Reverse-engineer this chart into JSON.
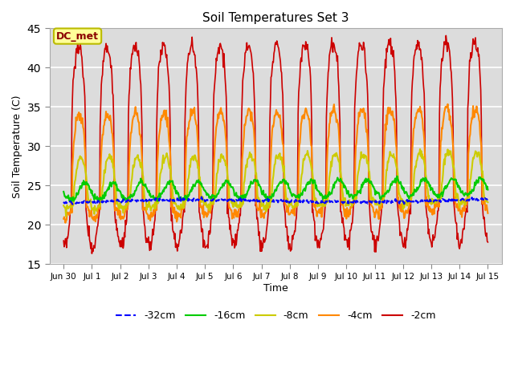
{
  "title": "Soil Temperatures Set 3",
  "xlabel": "Time",
  "ylabel": "Soil Temperature (C)",
  "ylim": [
    15,
    45
  ],
  "annotation": "DC_met",
  "bg_color": "#dcdcdc",
  "colors": {
    "-32cm": "#0000ff",
    "-16cm": "#00cc00",
    "-8cm": "#cccc00",
    "-4cm": "#ff8800",
    "-2cm": "#cc0000"
  },
  "tick_labels": [
    "Jun 30",
    "Jul 1",
    "Jul 2",
    "Jul 3",
    "Jul 4",
    "Jul 5",
    "Jul 6",
    "Jul 7",
    "Jul 8",
    "Jul 9",
    "Jul 10",
    "Jul 11",
    "Jul 12",
    "Jul 13",
    "Jul 14",
    "Jul 15"
  ],
  "tick_positions": [
    0,
    1,
    2,
    3,
    4,
    5,
    6,
    7,
    8,
    9,
    10,
    11,
    12,
    13,
    14,
    15
  ],
  "yticks": [
    15,
    20,
    25,
    30,
    35,
    40,
    45
  ]
}
